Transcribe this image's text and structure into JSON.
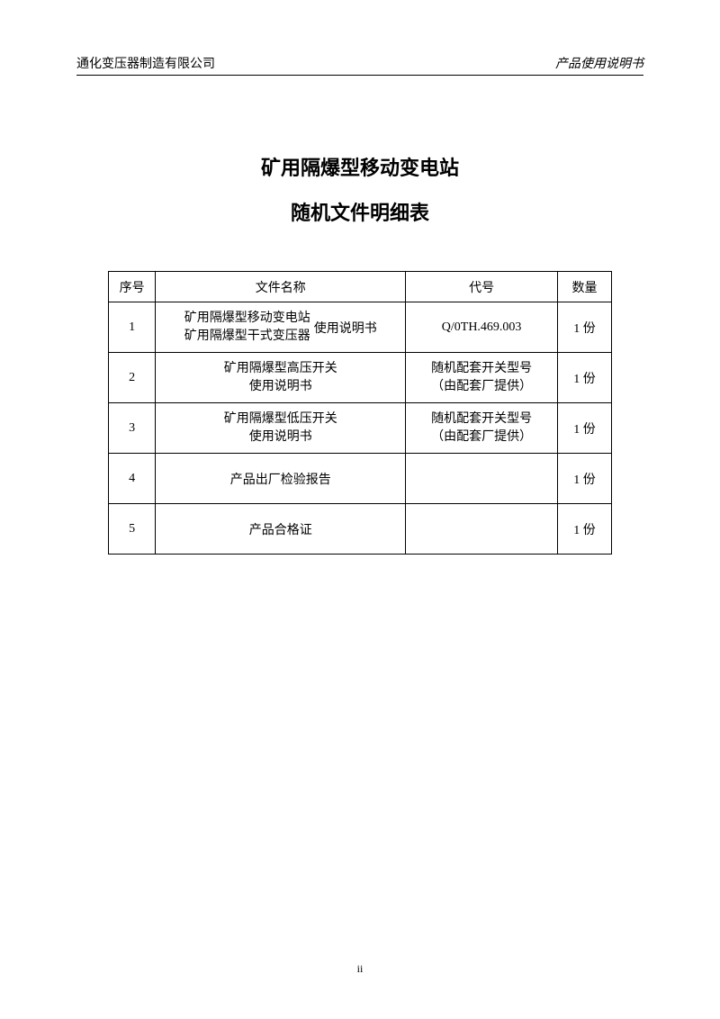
{
  "header": {
    "company": "通化变压器制造有限公司",
    "docType": "产品使用说明书"
  },
  "title": {
    "line1": "矿用隔爆型移动变电站",
    "line2": "随机文件明细表"
  },
  "table": {
    "columns": {
      "seq": "序号",
      "name": "文件名称",
      "code": "代号",
      "qty": "数量"
    },
    "colWidths": {
      "seq": 48,
      "name": 255,
      "code": 155,
      "qty": 55
    },
    "headerRowHeight": 34,
    "bodyRowHeight": 56,
    "borderColor": "#000000",
    "fontSize": 14,
    "rows": [
      {
        "seq": "1",
        "nameLeftLine1": "矿用隔爆型移动变电站",
        "nameLeftLine2": "矿用隔爆型干式变压器",
        "nameRight": "使用说明书",
        "code": "Q/0TH.469.003",
        "qty": "1 份"
      },
      {
        "seq": "2",
        "nameLine1": "矿用隔爆型高压开关",
        "nameLine2": "使用说明书",
        "codeLine1": "随机配套开关型号",
        "codeLine2": "（由配套厂提供）",
        "qty": "1 份"
      },
      {
        "seq": "3",
        "nameLine1": "矿用隔爆型低压开关",
        "nameLine2": "使用说明书",
        "codeLine1": "随机配套开关型号",
        "codeLine2": "（由配套厂提供）",
        "qty": "1 份"
      },
      {
        "seq": "4",
        "name": "产品出厂检验报告",
        "code": "",
        "qty": "1 份"
      },
      {
        "seq": "5",
        "name": "产品合格证",
        "code": "",
        "qty": "1 份"
      }
    ]
  },
  "pageNumber": "ii",
  "colors": {
    "background": "#ffffff",
    "text": "#000000",
    "border": "#000000"
  },
  "typography": {
    "bodyFont": "SimSun",
    "headerRightFont": "KaiTi",
    "titleFontSize": 22,
    "bodyFontSize": 14,
    "headerFontSize": 14
  }
}
